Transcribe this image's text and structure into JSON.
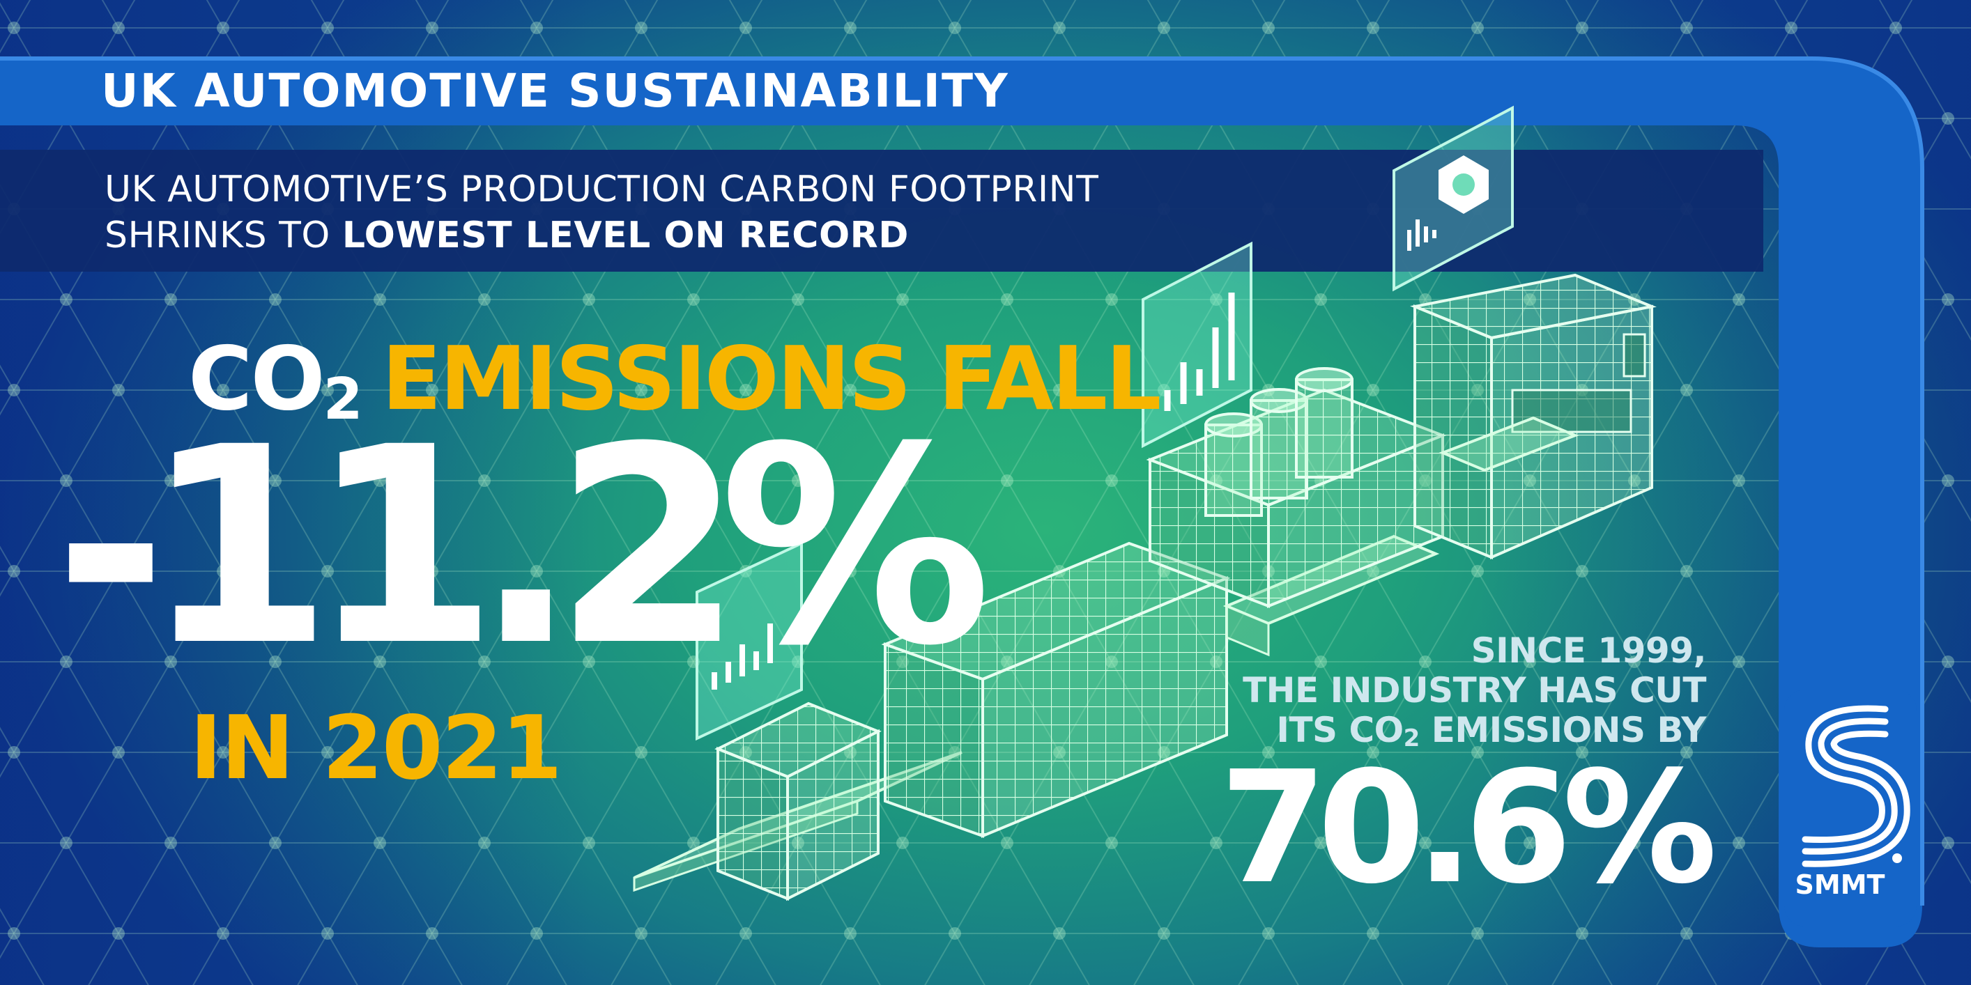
{
  "header": {
    "title": "UK AUTOMOTIVE SUSTAINABILITY",
    "subtitle_line1": "UK AUTOMOTIVE’S PRODUCTION CARBON FOOTPRINT",
    "subtitle_line2_prefix": "SHRINKS TO ",
    "subtitle_line2_bold": "LOWEST LEVEL ON RECORD"
  },
  "headline": {
    "co": "CO",
    "sub2": "2",
    "emissions_fall": "EMISSIONS FALL",
    "change": "-11.2%",
    "year_line": "IN 2021"
  },
  "since": {
    "line1": "SINCE 1999,",
    "line2": "THE INDUSTRY HAS CUT",
    "line3_prefix": "ITS CO",
    "line3_sub": "2",
    "line3_suffix": " EMISSIONS BY",
    "value": "70.6%"
  },
  "logo": {
    "label": "SMMT",
    "icon": "smmt-logo"
  },
  "colors": {
    "header_band": "#1565c8",
    "subtitle_band": "#0e2a6e",
    "accent_yellow": "#f7b500",
    "grid_line": "#bff5cf",
    "panel": "#7ee9c8"
  },
  "illustration": {
    "icon": "production-line-illustration"
  }
}
